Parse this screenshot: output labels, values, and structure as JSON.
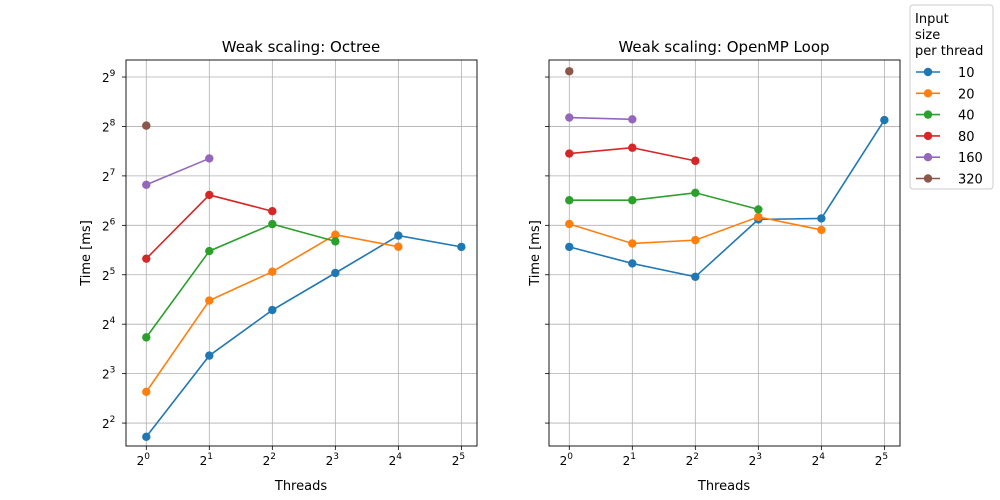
{
  "chart_data": [
    {
      "type": "line",
      "title": "Weak scaling: Octree",
      "xlabel": "Threads",
      "ylabel": "Time [ms]",
      "xscale": "log2",
      "yscale": "log2",
      "x_ticks": [
        {
          "base": "2",
          "exp": "0"
        },
        {
          "base": "2",
          "exp": "1"
        },
        {
          "base": "2",
          "exp": "2"
        },
        {
          "base": "2",
          "exp": "3"
        },
        {
          "base": "2",
          "exp": "4"
        },
        {
          "base": "2",
          "exp": "5"
        }
      ],
      "y_ticks": [
        {
          "base": "2",
          "exp": "2"
        },
        {
          "base": "2",
          "exp": "3"
        },
        {
          "base": "2",
          "exp": "4"
        },
        {
          "base": "2",
          "exp": "5"
        },
        {
          "base": "2",
          "exp": "6"
        },
        {
          "base": "2",
          "exp": "7"
        },
        {
          "base": "2",
          "exp": "8"
        },
        {
          "base": "2",
          "exp": "9"
        }
      ],
      "xlim": [
        0.8,
        38
      ],
      "ylim": [
        2.9,
        650
      ],
      "grid": true,
      "series": [
        {
          "name": "10",
          "x": [
            1,
            2,
            4,
            8,
            16,
            32
          ],
          "y": [
            3.3,
            10.3,
            19.5,
            32.8,
            55.4,
            47.3
          ]
        },
        {
          "name": "20",
          "x": [
            1,
            2,
            4,
            8,
            16
          ],
          "y": [
            6.2,
            22.3,
            33.4,
            56.1,
            47.4
          ]
        },
        {
          "name": "40",
          "x": [
            1,
            2,
            4,
            8
          ],
          "y": [
            13.3,
            44.6,
            65.1,
            51.1
          ]
        },
        {
          "name": "80",
          "x": [
            1,
            2,
            4
          ],
          "y": [
            40.1,
            98.0,
            78.0
          ]
        },
        {
          "name": "160",
          "x": [
            1,
            2
          ],
          "y": [
            113.0,
            163.5
          ]
        },
        {
          "name": "320",
          "x": [
            1
          ],
          "y": [
            259.0
          ]
        }
      ]
    },
    {
      "type": "line",
      "title": "Weak scaling: OpenMP Loop",
      "xlabel": "Threads",
      "ylabel": "Time [ms]",
      "xscale": "log2",
      "yscale": "log2",
      "x_ticks": [
        {
          "base": "2",
          "exp": "0"
        },
        {
          "base": "2",
          "exp": "1"
        },
        {
          "base": "2",
          "exp": "2"
        },
        {
          "base": "2",
          "exp": "3"
        },
        {
          "base": "2",
          "exp": "4"
        },
        {
          "base": "2",
          "exp": "5"
        }
      ],
      "xlim": [
        0.8,
        38
      ],
      "ylim": [
        2.9,
        650
      ],
      "grid": true,
      "series": [
        {
          "name": "10",
          "x": [
            1,
            2,
            4,
            8,
            16,
            32
          ],
          "y": [
            47.3,
            37.5,
            31.1,
            69.5,
            70.5,
            280.0
          ]
        },
        {
          "name": "20",
          "x": [
            1,
            2,
            4,
            8,
            16
          ],
          "y": [
            65.2,
            49.6,
            52.0,
            72.0,
            60.0
          ]
        },
        {
          "name": "40",
          "x": [
            1,
            2,
            4,
            8
          ],
          "y": [
            91.0,
            91.0,
            101.0,
            80.0
          ]
        },
        {
          "name": "80",
          "x": [
            1,
            2,
            4
          ],
          "y": [
            175.0,
            190.0,
            158.0
          ]
        },
        {
          "name": "160",
          "x": [
            1,
            2
          ],
          "y": [
            290.0,
            283.0
          ]
        },
        {
          "name": "320",
          "x": [
            1
          ],
          "y": [
            555.0
          ]
        }
      ]
    }
  ],
  "legend": {
    "title_lines": [
      "Input",
      "size",
      "per thread"
    ],
    "placement": "right",
    "entries": [
      {
        "label": "10",
        "color": "#1f77b4"
      },
      {
        "label": "20",
        "color": "#ff7f0e"
      },
      {
        "label": "40",
        "color": "#2ca02c"
      },
      {
        "label": "80",
        "color": "#d62728"
      },
      {
        "label": "160",
        "color": "#9467bd"
      },
      {
        "label": "320",
        "color": "#8c564b"
      }
    ]
  }
}
